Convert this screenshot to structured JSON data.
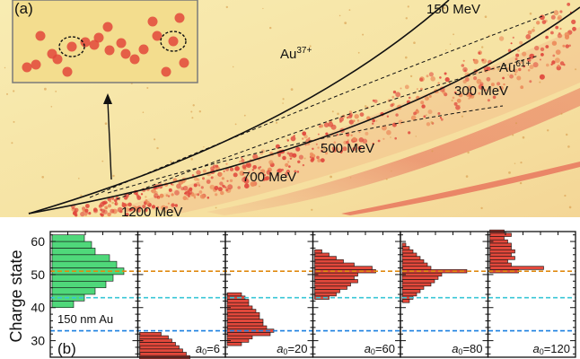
{
  "panel_a": {
    "label": "(a)",
    "species": [
      {
        "text": "Au",
        "charge": "37+"
      },
      {
        "text": "Au",
        "charge": "61+"
      }
    ],
    "energies": [
      "150 MeV",
      "300 MeV",
      "500 MeV",
      "700 MeV",
      "1200 MeV"
    ]
  },
  "panel_b": {
    "label": "(b)",
    "ylabel": "Charge state",
    "target_label": "150 nm Au",
    "yticks": [
      "30",
      "40",
      "50",
      "60"
    ],
    "ylim": [
      25,
      63
    ],
    "reference_lines": [
      {
        "value": 51,
        "color": "#e08a10"
      },
      {
        "value": 43,
        "color": "#39c6d6"
      },
      {
        "value": 33,
        "color": "#1a7fe0"
      }
    ],
    "colors": {
      "target_bars": "#4fd87a",
      "laser_bars": "#e2483b",
      "bar_edge": "#111111"
    }
  },
  "chart_data": {
    "type": "bar",
    "orientation": "horizontal",
    "y_axis": "Charge state",
    "subplots": [
      {
        "label": "150 nm Au",
        "a0": "",
        "charge_states": [
          41,
          43,
          45,
          47,
          49,
          51,
          53,
          55,
          57,
          59,
          61
        ],
        "values": [
          0.3,
          0.45,
          0.6,
          0.75,
          0.85,
          1.0,
          0.9,
          0.8,
          0.6,
          0.55,
          0.45
        ]
      },
      {
        "label": "a0=6",
        "a0": "6",
        "charge_states": [
          25,
          26,
          27,
          28,
          29,
          30,
          31,
          32
        ],
        "values": [
          0.7,
          0.65,
          0.6,
          0.55,
          0.5,
          0.45,
          0.4,
          0.3
        ]
      },
      {
        "label": "a0=20",
        "a0": "20",
        "charge_states": [
          29,
          30,
          31,
          32,
          33,
          34,
          35,
          36,
          37,
          38,
          39,
          40,
          41,
          42,
          43,
          44
        ],
        "values": [
          0.2,
          0.3,
          0.35,
          0.6,
          0.65,
          0.55,
          0.5,
          0.5,
          0.45,
          0.45,
          0.4,
          0.35,
          0.3,
          0.3,
          0.25,
          0.2
        ]
      },
      {
        "label": "a0=60",
        "a0": "60",
        "charge_states": [
          43,
          44,
          45,
          46,
          47,
          48,
          49,
          50,
          51,
          52,
          53,
          54,
          55,
          56,
          57
        ],
        "values": [
          0.2,
          0.3,
          0.35,
          0.45,
          0.5,
          0.6,
          0.55,
          0.6,
          0.85,
          0.8,
          0.55,
          0.4,
          0.3,
          0.2,
          0.1
        ]
      },
      {
        "label": "a0=80",
        "a0": "80",
        "charge_states": [
          42,
          43,
          44,
          45,
          46,
          47,
          48,
          49,
          50,
          51,
          52,
          53,
          54,
          55,
          56,
          57,
          58,
          59
        ],
        "values": [
          0.1,
          0.15,
          0.2,
          0.25,
          0.3,
          0.4,
          0.45,
          0.5,
          0.55,
          0.9,
          0.4,
          0.35,
          0.3,
          0.25,
          0.2,
          0.15,
          0.1,
          0.05
        ]
      },
      {
        "label": "a0=120",
        "a0": "120",
        "charge_states": [
          51,
          52,
          53,
          54,
          55,
          56,
          57,
          58,
          59,
          60,
          61,
          62,
          63
        ],
        "values": [
          0.4,
          0.75,
          0.3,
          0.25,
          0.35,
          0.3,
          0.35,
          0.3,
          0.3,
          0.25,
          0.2,
          0.3,
          0.2
        ]
      }
    ]
  }
}
